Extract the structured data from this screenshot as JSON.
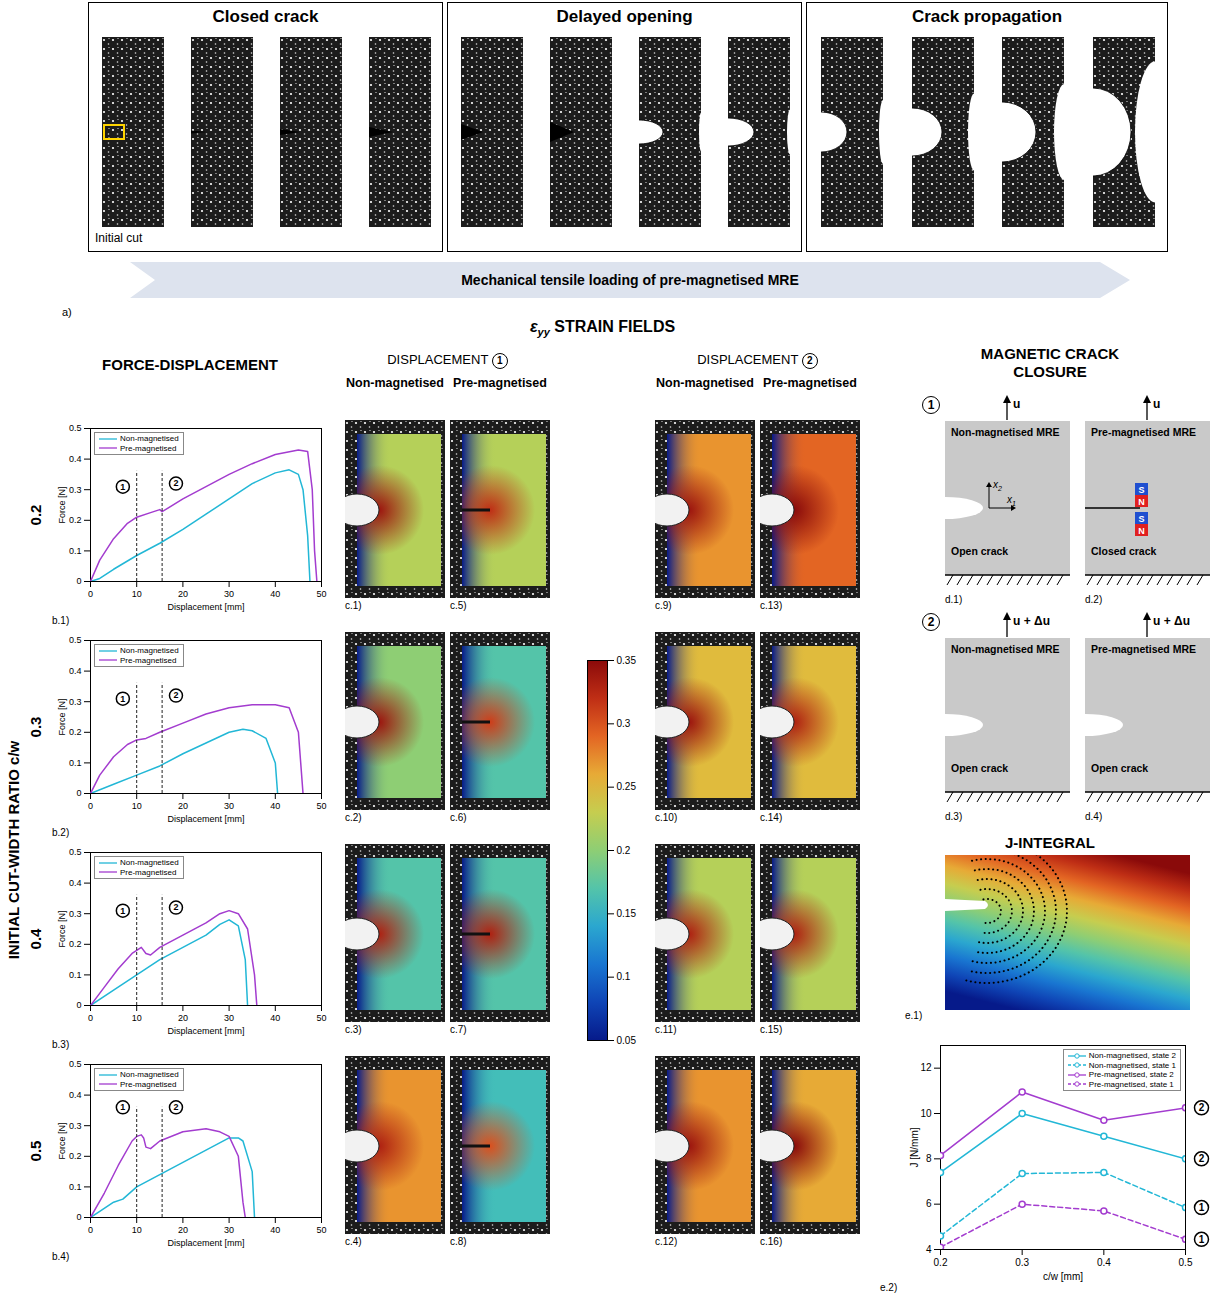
{
  "figure": {
    "panel_a": {
      "label": "a)",
      "stages": [
        "Closed crack",
        "Delayed opening",
        "Crack propagation"
      ],
      "initial_cut": "Initial cut",
      "banner": "Mechanical tensile loading of pre-magnetised MRE"
    },
    "strain_heading": {
      "symbol": "ε",
      "subscript": "yy",
      "text": "STRAIN FIELDS"
    },
    "force_heading": "FORCE-DISPLACEMENT",
    "row_title": "INITIAL CUT-WIDTH RATIO c/w",
    "rows": [
      0.2,
      0.3,
      0.4,
      0.5
    ],
    "displacement_columns": [
      {
        "text": "DISPLACEMENT",
        "step": "1",
        "columns": [
          "Non-magnetised",
          "Pre-magnetised"
        ]
      },
      {
        "text": "DISPLACEMENT",
        "step": "2",
        "columns": [
          "Non-magnetised",
          "Pre-magnetised"
        ]
      }
    ],
    "strain_fields": {
      "colorbar": {
        "range": [
          0.05,
          0.35
        ],
        "ticks": [
          0.05,
          0.1,
          0.15,
          0.2,
          0.25,
          0.3,
          0.35
        ]
      },
      "cells": [
        {
          "label": "c.1)",
          "background": 0.22,
          "peak": 0.34,
          "crack": "open"
        },
        {
          "label": "c.2)",
          "background": 0.2,
          "peak": 0.34,
          "crack": "open"
        },
        {
          "label": "c.3)",
          "background": 0.17,
          "peak": 0.33,
          "crack": "open"
        },
        {
          "label": "c.4)",
          "background": 0.27,
          "peak": 0.33,
          "crack": "open"
        },
        {
          "label": "c.5)",
          "background": 0.22,
          "peak": 0.32,
          "crack": "closed"
        },
        {
          "label": "c.6)",
          "background": 0.17,
          "peak": 0.31,
          "crack": "closed"
        },
        {
          "label": "c.7)",
          "background": 0.17,
          "peak": 0.33,
          "crack": "closed"
        },
        {
          "label": "c.8)",
          "background": 0.16,
          "peak": 0.3,
          "crack": "closed"
        },
        {
          "label": "c.9)",
          "background": 0.27,
          "peak": 0.34,
          "crack": "open"
        },
        {
          "label": "c.10)",
          "background": 0.25,
          "peak": 0.34,
          "crack": "open"
        },
        {
          "label": "c.11)",
          "background": 0.22,
          "peak": 0.33,
          "crack": "open"
        },
        {
          "label": "c.12)",
          "background": 0.27,
          "peak": 0.34,
          "crack": "open"
        },
        {
          "label": "c.13)",
          "background": 0.29,
          "peak": 0.35,
          "crack": "open"
        },
        {
          "label": "c.14)",
          "background": 0.25,
          "peak": 0.33,
          "crack": "open"
        },
        {
          "label": "c.15)",
          "background": 0.22,
          "peak": 0.33,
          "crack": "open"
        },
        {
          "label": "c.16)",
          "background": 0.26,
          "peak": 0.35,
          "crack": "open"
        }
      ]
    },
    "crack_closure": {
      "title": "MAGNETIC CRACK CLOSURE",
      "panels": [
        {
          "label": "d.1)",
          "step": "1",
          "load": "u",
          "material": "Non-magnetised MRE",
          "crack": "Open crack",
          "axes": [
            {
              "symbol": "x",
              "subscript": "2"
            },
            {
              "symbol": "x",
              "subscript": "1"
            }
          ]
        },
        {
          "label": "d.2)",
          "load": "u",
          "material": "Pre-magnetised MRE",
          "crack": "Closed crack",
          "magnets": [
            "S",
            "N"
          ]
        },
        {
          "label": "d.3)",
          "step": "2",
          "load": "u + Δu",
          "material": "Non-magnetised MRE",
          "crack": "Open crack"
        },
        {
          "label": "d.4)",
          "load": "u + Δu",
          "material": "Pre-magnetised MRE",
          "crack": "Open crack"
        }
      ]
    },
    "j_integral": {
      "title": "J-INTEGRAL",
      "label": "e.1)"
    }
  },
  "chart_data": [
    {
      "type": "line",
      "label": "b.1)",
      "x_label": "Displacement [mm]",
      "y_label": "Force [N]",
      "xlim": [
        0,
        50
      ],
      "ylim": [
        0,
        0.5
      ],
      "xticks": [
        0,
        10,
        20,
        30,
        40,
        50
      ],
      "yticks": [
        0,
        0.1,
        0.2,
        0.3,
        0.4,
        0.5
      ],
      "legend": "top-left",
      "series": [
        {
          "name": "Non-magnetised",
          "color": "#22b7d6",
          "x": [
            0,
            2,
            5,
            10,
            15,
            20,
            25,
            30,
            35,
            40,
            43,
            45,
            46,
            47,
            47.5
          ],
          "values": [
            0,
            0.01,
            0.04,
            0.085,
            0.125,
            0.17,
            0.22,
            0.27,
            0.32,
            0.355,
            0.365,
            0.35,
            0.3,
            0.15,
            0
          ]
        },
        {
          "name": "Pre-magnetised",
          "color": "#a33ccf",
          "x": [
            0,
            2,
            5,
            8,
            10,
            13,
            15,
            15.5,
            20,
            25,
            30,
            35,
            40,
            45,
            47,
            48,
            48.5,
            49
          ],
          "values": [
            0,
            0.07,
            0.14,
            0.19,
            0.21,
            0.225,
            0.235,
            0.228,
            0.27,
            0.31,
            0.35,
            0.385,
            0.415,
            0.43,
            0.425,
            0.3,
            0.1,
            0
          ]
        }
      ],
      "annotations": [
        {
          "x": 10,
          "y2": 0.36,
          "label": "1",
          "label_x": 7,
          "label_y": 0.31
        },
        {
          "x": 15.5,
          "y2": 0.36,
          "label": "2",
          "label_x": 18.5,
          "label_y": 0.32
        }
      ]
    },
    {
      "type": "line",
      "label": "b.2)",
      "x_label": "Displacement [mm]",
      "y_label": "Force [N]",
      "xlim": [
        0,
        50
      ],
      "ylim": [
        0,
        0.5
      ],
      "xticks": [
        0,
        10,
        20,
        30,
        40,
        50
      ],
      "yticks": [
        0,
        0.1,
        0.2,
        0.3,
        0.4,
        0.5
      ],
      "legend": "top-left",
      "series": [
        {
          "name": "Non-magnetised",
          "color": "#22b7d6",
          "x": [
            0,
            5,
            10,
            15,
            20,
            25,
            30,
            33,
            35,
            38,
            40,
            40.5
          ],
          "values": [
            0,
            0.03,
            0.06,
            0.09,
            0.13,
            0.165,
            0.2,
            0.21,
            0.205,
            0.18,
            0.1,
            0
          ]
        },
        {
          "name": "Pre-magnetised",
          "color": "#a33ccf",
          "x": [
            0,
            2,
            5,
            8,
            10,
            12,
            15,
            20,
            25,
            30,
            35,
            40,
            43,
            45,
            46
          ],
          "values": [
            0,
            0.06,
            0.12,
            0.16,
            0.175,
            0.18,
            0.2,
            0.23,
            0.26,
            0.28,
            0.29,
            0.29,
            0.28,
            0.2,
            0
          ]
        }
      ],
      "annotations": [
        {
          "x": 10,
          "y2": 0.36,
          "label": "1",
          "label_x": 7,
          "label_y": 0.31
        },
        {
          "x": 15.5,
          "y2": 0.36,
          "label": "2",
          "label_x": 18.5,
          "label_y": 0.32
        }
      ]
    },
    {
      "type": "line",
      "label": "b.3)",
      "x_label": "Displacement [mm]",
      "y_label": "Force [N]",
      "xlim": [
        0,
        50
      ],
      "ylim": [
        0,
        0.5
      ],
      "xticks": [
        0,
        10,
        20,
        30,
        40,
        50
      ],
      "yticks": [
        0,
        0.1,
        0.2,
        0.3,
        0.4,
        0.5
      ],
      "legend": "top-left",
      "series": [
        {
          "name": "Non-magnetised",
          "color": "#22b7d6",
          "x": [
            0,
            5,
            10,
            15,
            20,
            25,
            28,
            30,
            32,
            33.5,
            34
          ],
          "values": [
            0,
            0.05,
            0.1,
            0.15,
            0.19,
            0.23,
            0.265,
            0.28,
            0.26,
            0.15,
            0
          ]
        },
        {
          "name": "Pre-magnetised",
          "color": "#a33ccf",
          "x": [
            0,
            3,
            6,
            9,
            10,
            11,
            12,
            13,
            15,
            20,
            25,
            28,
            30,
            32,
            34,
            35.5,
            36
          ],
          "values": [
            0,
            0.06,
            0.12,
            0.17,
            0.18,
            0.19,
            0.17,
            0.165,
            0.19,
            0.23,
            0.27,
            0.3,
            0.31,
            0.3,
            0.25,
            0.1,
            0
          ]
        }
      ],
      "annotations": [
        {
          "x": 10,
          "y2": 0.36,
          "label": "1",
          "label_x": 7,
          "label_y": 0.31
        },
        {
          "x": 15.5,
          "y2": 0.36,
          "label": "2",
          "label_x": 18.5,
          "label_y": 0.32
        }
      ]
    },
    {
      "type": "line",
      "label": "b.4)",
      "x_label": "Displacement [mm]",
      "y_label": "Force [N]",
      "xlim": [
        0,
        50
      ],
      "ylim": [
        0,
        0.5
      ],
      "xticks": [
        0,
        10,
        20,
        30,
        40,
        50
      ],
      "yticks": [
        0,
        0.1,
        0.2,
        0.3,
        0.4,
        0.5
      ],
      "legend": "top-left",
      "series": [
        {
          "name": "Non-magnetised",
          "color": "#22b7d6",
          "x": [
            0,
            2,
            5,
            7,
            10,
            15,
            20,
            25,
            30,
            32,
            33,
            35,
            35.5
          ],
          "values": [
            0,
            0.02,
            0.05,
            0.06,
            0.1,
            0.14,
            0.18,
            0.22,
            0.26,
            0.26,
            0.25,
            0.15,
            0
          ]
        },
        {
          "name": "Pre-magnetised",
          "color": "#a33ccf",
          "x": [
            0,
            3,
            6,
            9,
            10,
            11,
            11.5,
            12,
            13,
            15,
            20,
            25,
            28,
            30,
            32,
            33,
            33.5
          ],
          "values": [
            0,
            0.08,
            0.17,
            0.25,
            0.265,
            0.27,
            0.26,
            0.23,
            0.225,
            0.25,
            0.28,
            0.29,
            0.28,
            0.265,
            0.2,
            0.05,
            0
          ]
        }
      ],
      "annotations": [
        {
          "x": 10,
          "y2": 0.36,
          "label": "1",
          "label_x": 7,
          "label_y": 0.36
        },
        {
          "x": 15.5,
          "y2": 0.36,
          "label": "2",
          "label_x": 18.5,
          "label_y": 0.36
        }
      ]
    },
    {
      "type": "line",
      "label": "e.2)",
      "x_label": "c/w [mm]",
      "y_label": "J [N/mm]",
      "x": [
        0.2,
        0.3,
        0.4,
        0.5
      ],
      "xlim": [
        0.2,
        0.5
      ],
      "ylim": [
        4,
        13
      ],
      "xticks": [
        0.2,
        0.3,
        0.4,
        0.5
      ],
      "yticks": [
        4,
        6,
        8,
        10,
        12
      ],
      "legend": "top-right",
      "marker": "circle",
      "series": [
        {
          "name": "Non-magnetised, state 2",
          "color": "#22b7d6",
          "line_style": "solid",
          "values": [
            7.4,
            10.0,
            9.0,
            8.0
          ],
          "end_label": "2"
        },
        {
          "name": "Non-magnetised, state 1",
          "color": "#22b7d6",
          "line_style": "dashed",
          "values": [
            4.6,
            7.35,
            7.4,
            5.85
          ],
          "end_label": "1"
        },
        {
          "name": "Pre-magnetised, state 2",
          "color": "#a33ccf",
          "line_style": "solid",
          "values": [
            8.15,
            10.95,
            9.7,
            10.25
          ],
          "end_label": "2"
        },
        {
          "name": "Pre-magnetised, state 1",
          "color": "#a33ccf",
          "line_style": "dashed",
          "values": [
            4.1,
            6.0,
            5.7,
            4.45
          ],
          "end_label": "1"
        }
      ]
    }
  ]
}
